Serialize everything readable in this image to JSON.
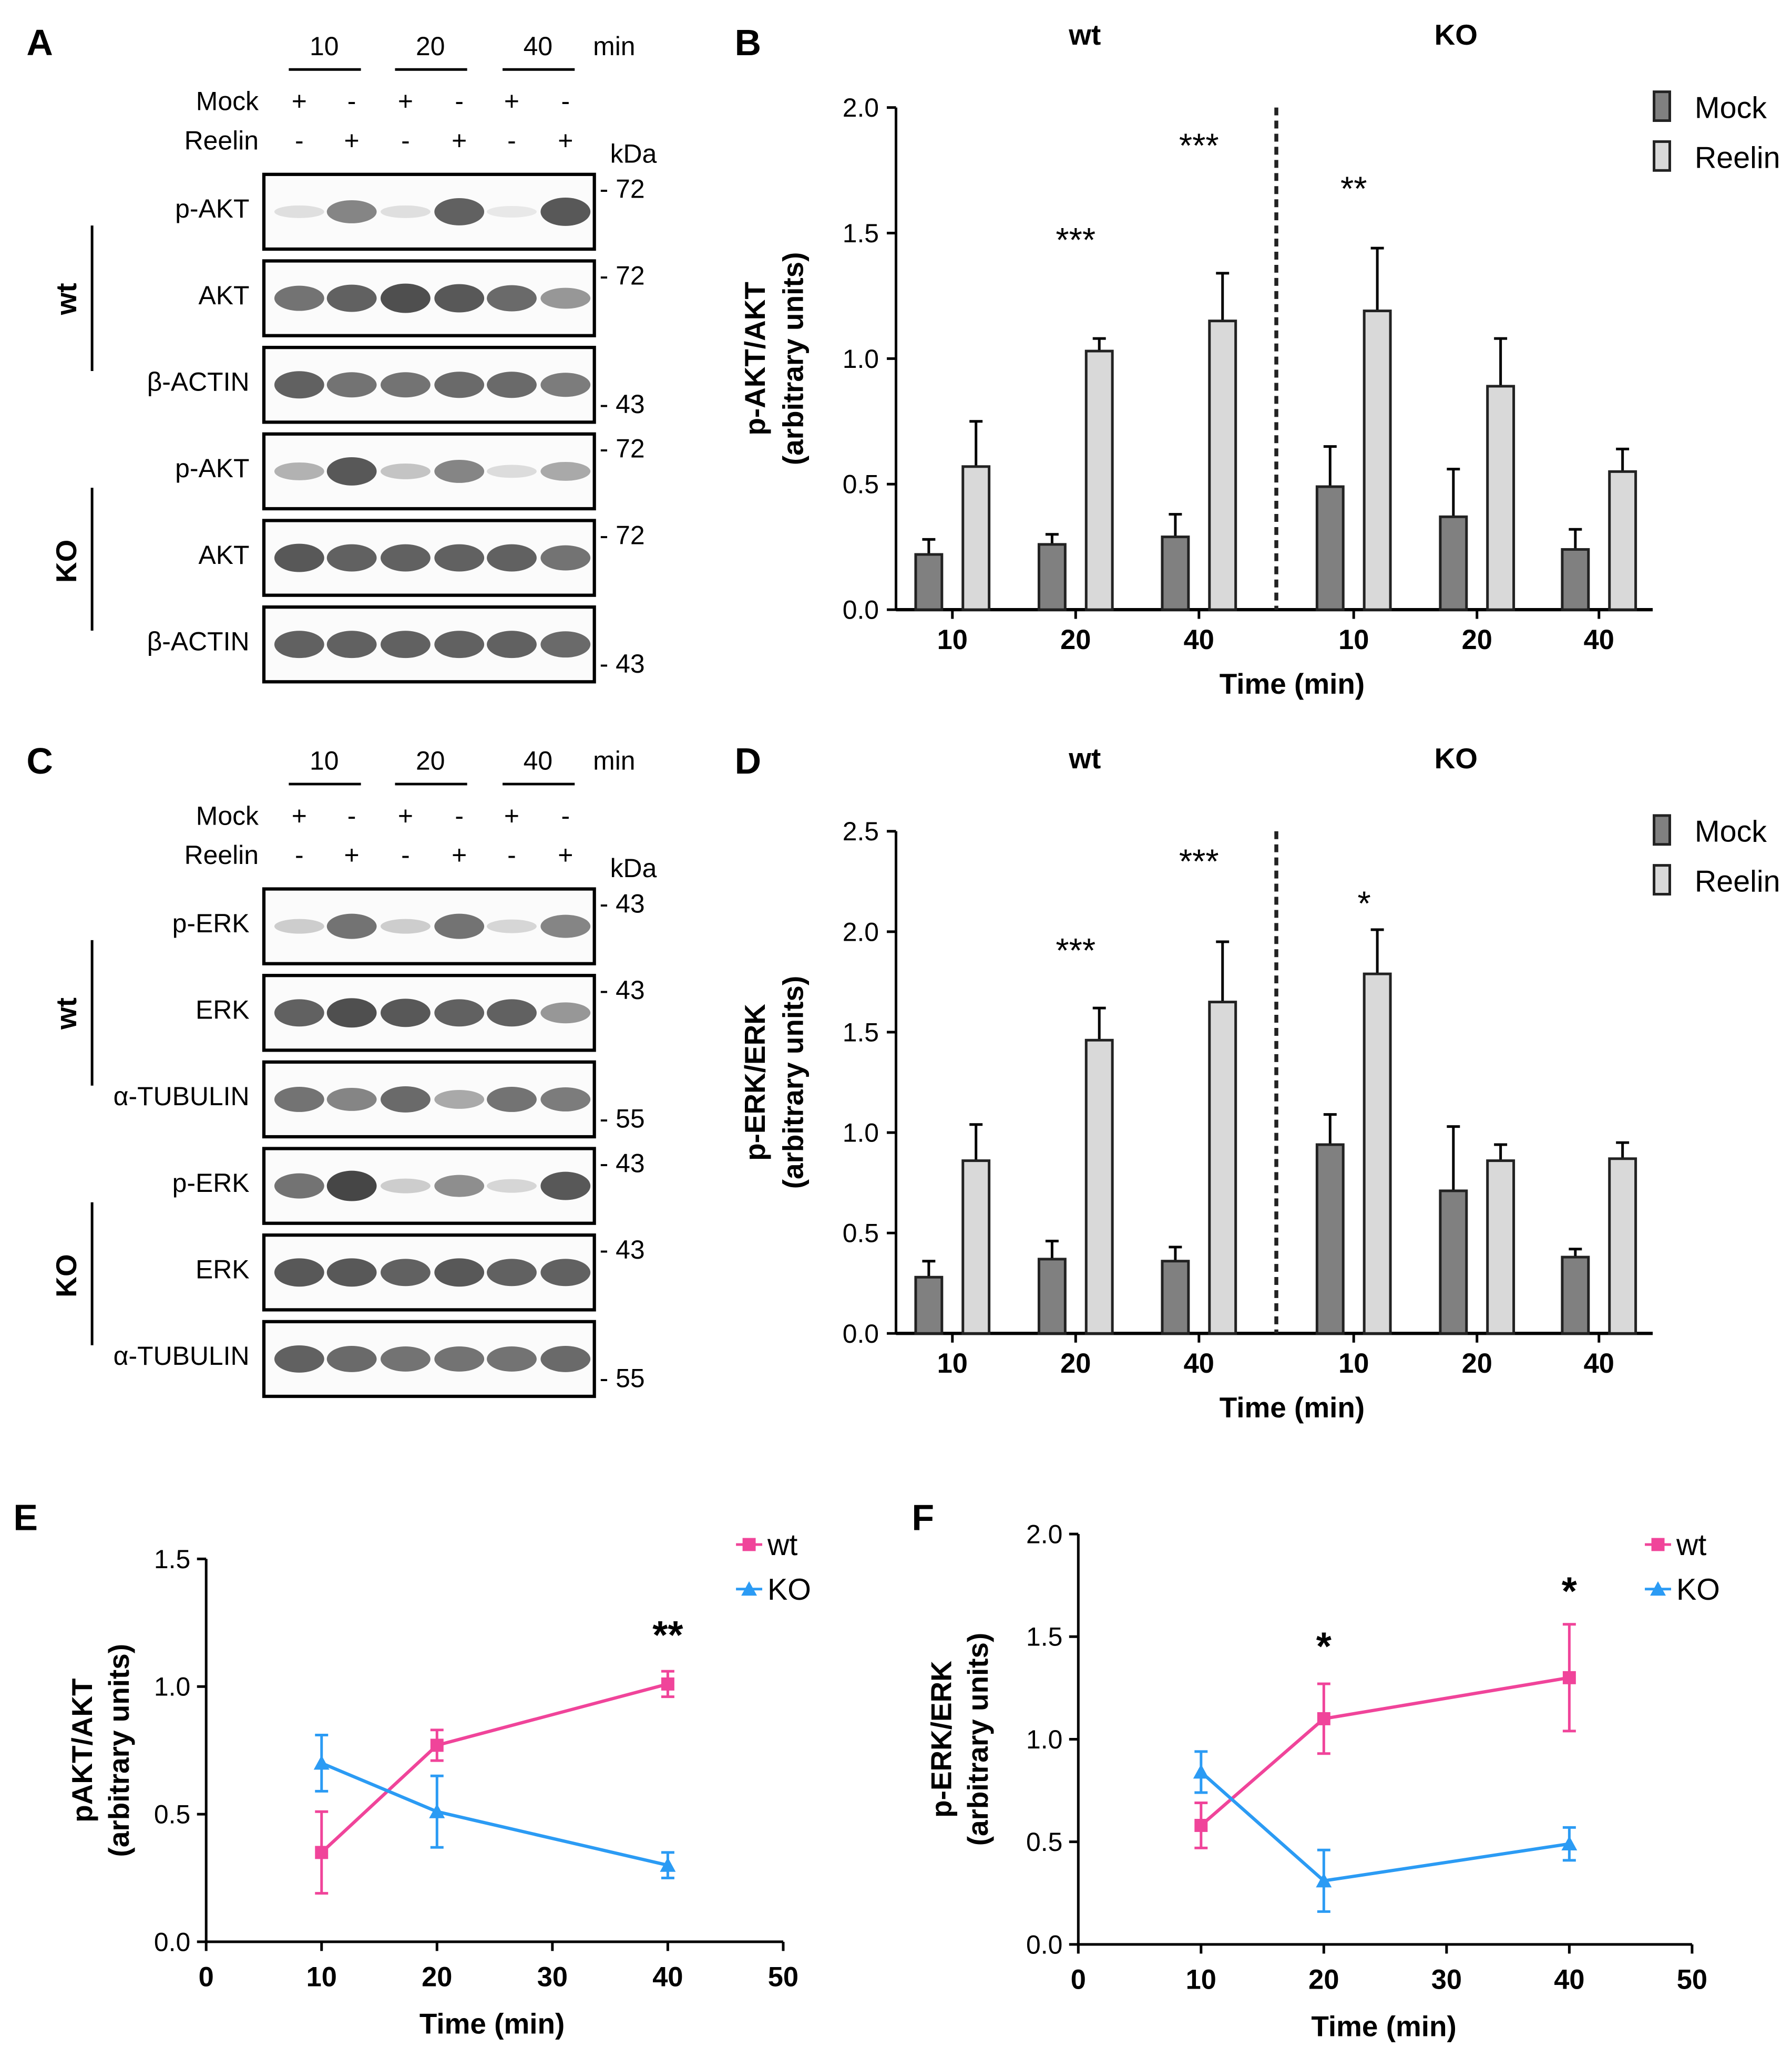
{
  "panels": {
    "A": "A",
    "B": "B",
    "C": "C",
    "D": "D",
    "E": "E",
    "F": "F"
  },
  "blots": [
    {
      "times": [
        "10",
        "20",
        "40"
      ],
      "time_unit": "min",
      "mock_label": "Mock",
      "reelin_label": "Reelin",
      "mock_signs": [
        "+",
        "-",
        "+",
        "-",
        "+",
        "-"
      ],
      "reelin_signs": [
        "-",
        "+",
        "-",
        "+",
        "-",
        "+"
      ],
      "kda_label": "kDa",
      "groups": [
        "wt",
        "KO"
      ],
      "rows": [
        {
          "label": "p-AKT",
          "marker": "- 72",
          "intensity": [
            0.1,
            0.6,
            0.1,
            0.8,
            0.05,
            0.85
          ]
        },
        {
          "label": "AKT",
          "marker": "- 72",
          "intensity": [
            0.7,
            0.8,
            0.9,
            0.85,
            0.75,
            0.5
          ]
        },
        {
          "label": "β-ACTIN",
          "marker": "- 43",
          "intensity": [
            0.8,
            0.7,
            0.7,
            0.75,
            0.75,
            0.65
          ]
        },
        {
          "label": "p-AKT",
          "marker": "- 72",
          "intensity": [
            0.35,
            0.85,
            0.25,
            0.6,
            0.12,
            0.4
          ]
        },
        {
          "label": "AKT",
          "marker": "- 72",
          "intensity": [
            0.85,
            0.8,
            0.8,
            0.8,
            0.8,
            0.7
          ]
        },
        {
          "label": "β-ACTIN",
          "marker": "- 43",
          "intensity": [
            0.8,
            0.8,
            0.8,
            0.8,
            0.8,
            0.75
          ]
        }
      ]
    },
    {
      "times": [
        "10",
        "20",
        "40"
      ],
      "time_unit": "min",
      "mock_label": "Mock",
      "reelin_label": "Reelin",
      "mock_signs": [
        "+",
        "-",
        "+",
        "-",
        "+",
        "-"
      ],
      "reelin_signs": [
        "-",
        "+",
        "-",
        "+",
        "-",
        "+"
      ],
      "kda_label": "kDa",
      "groups": [
        "wt",
        "KO"
      ],
      "rows": [
        {
          "label": "p-ERK",
          "marker": "- 43",
          "intensity": [
            0.2,
            0.7,
            0.2,
            0.7,
            0.15,
            0.6
          ]
        },
        {
          "label": "ERK",
          "marker": "- 43",
          "intensity": [
            0.8,
            0.9,
            0.85,
            0.8,
            0.8,
            0.5
          ]
        },
        {
          "label": "α-TUBULIN",
          "marker": "- 55",
          "intensity": [
            0.7,
            0.6,
            0.75,
            0.4,
            0.7,
            0.65
          ]
        },
        {
          "label": "p-ERK",
          "marker": "- 43",
          "intensity": [
            0.7,
            0.95,
            0.2,
            0.55,
            0.15,
            0.85
          ]
        },
        {
          "label": "ERK",
          "marker": "- 43",
          "intensity": [
            0.85,
            0.85,
            0.8,
            0.85,
            0.8,
            0.8
          ]
        },
        {
          "label": "α-TUBULIN",
          "marker": "- 55",
          "intensity": [
            0.8,
            0.75,
            0.7,
            0.7,
            0.7,
            0.75
          ]
        }
      ]
    }
  ],
  "chart_data": [
    {
      "type": "bar",
      "title": "",
      "ylabel": "p-AKT/AKT\n(arbitrary units)",
      "ylabel_lines": [
        "p-AKT/AKT",
        "(arbitrary units)"
      ],
      "xlabel": "Time (min)",
      "ylim": [
        0,
        2.0
      ],
      "yticks": [
        "0.0",
        "0.5",
        "1.0",
        "1.5",
        "2.0"
      ],
      "group_labels": [
        "wt",
        "KO"
      ],
      "categories": [
        "10",
        "20",
        "40",
        "10",
        "20",
        "40"
      ],
      "legend": {
        "position": "top-right",
        "entries": [
          "Mock",
          "Reelin"
        ]
      },
      "colors": {
        "Mock": "#808080",
        "Reelin": "#d9d9d9"
      },
      "series": [
        {
          "name": "Mock",
          "values": [
            0.22,
            0.26,
            0.29,
            0.49,
            0.37,
            0.24
          ],
          "errors": [
            0.06,
            0.04,
            0.09,
            0.16,
            0.19,
            0.08
          ]
        },
        {
          "name": "Reelin",
          "values": [
            0.57,
            1.03,
            1.15,
            1.19,
            0.89,
            0.55
          ],
          "errors": [
            0.18,
            0.05,
            0.19,
            0.25,
            0.19,
            0.09
          ]
        }
      ],
      "significance": [
        {
          "index": 1,
          "text": "***"
        },
        {
          "index": 2,
          "text": "***"
        },
        {
          "index": 3,
          "text": "**"
        }
      ]
    },
    {
      "type": "bar",
      "title": "",
      "ylabel_lines": [
        "p-ERK/ERK",
        "(arbitrary units)"
      ],
      "xlabel": "Time (min)",
      "ylim": [
        0,
        2.5
      ],
      "yticks": [
        "0.0",
        "0.5",
        "1.0",
        "1.5",
        "2.0",
        "2.5"
      ],
      "group_labels": [
        "wt",
        "KO"
      ],
      "categories": [
        "10",
        "20",
        "40",
        "10",
        "20",
        "40"
      ],
      "legend": {
        "position": "top-right",
        "entries": [
          "Mock",
          "Reelin"
        ]
      },
      "colors": {
        "Mock": "#808080",
        "Reelin": "#d9d9d9"
      },
      "series": [
        {
          "name": "Mock",
          "values": [
            0.28,
            0.37,
            0.36,
            0.94,
            0.71,
            0.38
          ],
          "errors": [
            0.08,
            0.09,
            0.07,
            0.15,
            0.32,
            0.04
          ]
        },
        {
          "name": "Reelin",
          "values": [
            0.86,
            1.46,
            1.65,
            1.79,
            0.86,
            0.87
          ],
          "errors": [
            0.18,
            0.16,
            0.3,
            0.22,
            0.08,
            0.08
          ]
        }
      ],
      "significance": [
        {
          "index": 1,
          "text": "***"
        },
        {
          "index": 2,
          "text": "***"
        },
        {
          "index": 3,
          "text": "*"
        }
      ]
    },
    {
      "type": "line",
      "ylabel_lines": [
        "pAKT/AKT",
        "(arbitrary units)"
      ],
      "xlabel": "Time (min)",
      "xlim": [
        0,
        50
      ],
      "ylim": [
        0,
        1.5
      ],
      "xticks": [
        "0",
        "10",
        "20",
        "30",
        "40",
        "50"
      ],
      "yticks": [
        "0.0",
        "0.5",
        "1.0",
        "1.5"
      ],
      "legend": {
        "position": "top-right",
        "entries": [
          "wt",
          "KO"
        ]
      },
      "series": [
        {
          "name": "wt",
          "color": "#f0449a",
          "marker": "square",
          "x": [
            10,
            20,
            40
          ],
          "y": [
            0.35,
            0.77,
            1.01
          ],
          "errors": [
            0.16,
            0.06,
            0.05
          ]
        },
        {
          "name": "KO",
          "color": "#2b9bf4",
          "marker": "triangle",
          "x": [
            10,
            20,
            40
          ],
          "y": [
            0.7,
            0.51,
            0.3
          ],
          "errors": [
            0.11,
            0.14,
            0.05
          ]
        }
      ],
      "significance": [
        {
          "x": 40,
          "y": 1.2,
          "text": "**"
        }
      ]
    },
    {
      "type": "line",
      "ylabel_lines": [
        "p-ERK/ERK",
        "(arbitrary units)"
      ],
      "xlabel": "Time (min)",
      "xlim": [
        0,
        50
      ],
      "ylim": [
        0,
        2.0
      ],
      "xticks": [
        "0",
        "10",
        "20",
        "30",
        "40",
        "50"
      ],
      "yticks": [
        "0.0",
        "0.5",
        "1.0",
        "1.5",
        "2.0"
      ],
      "legend": {
        "position": "top-right",
        "entries": [
          "wt",
          "KO"
        ]
      },
      "series": [
        {
          "name": "wt",
          "color": "#f0449a",
          "marker": "square",
          "x": [
            10,
            20,
            40
          ],
          "y": [
            0.58,
            1.1,
            1.3
          ],
          "errors": [
            0.11,
            0.17,
            0.26
          ]
        },
        {
          "name": "KO",
          "color": "#2b9bf4",
          "marker": "triangle",
          "x": [
            10,
            20,
            40
          ],
          "y": [
            0.84,
            0.31,
            0.49
          ],
          "errors": [
            0.1,
            0.15,
            0.08
          ]
        }
      ],
      "significance": [
        {
          "x": 20,
          "y": 1.45,
          "text": "*"
        },
        {
          "x": 40,
          "y": 1.72,
          "text": "*"
        }
      ]
    }
  ]
}
